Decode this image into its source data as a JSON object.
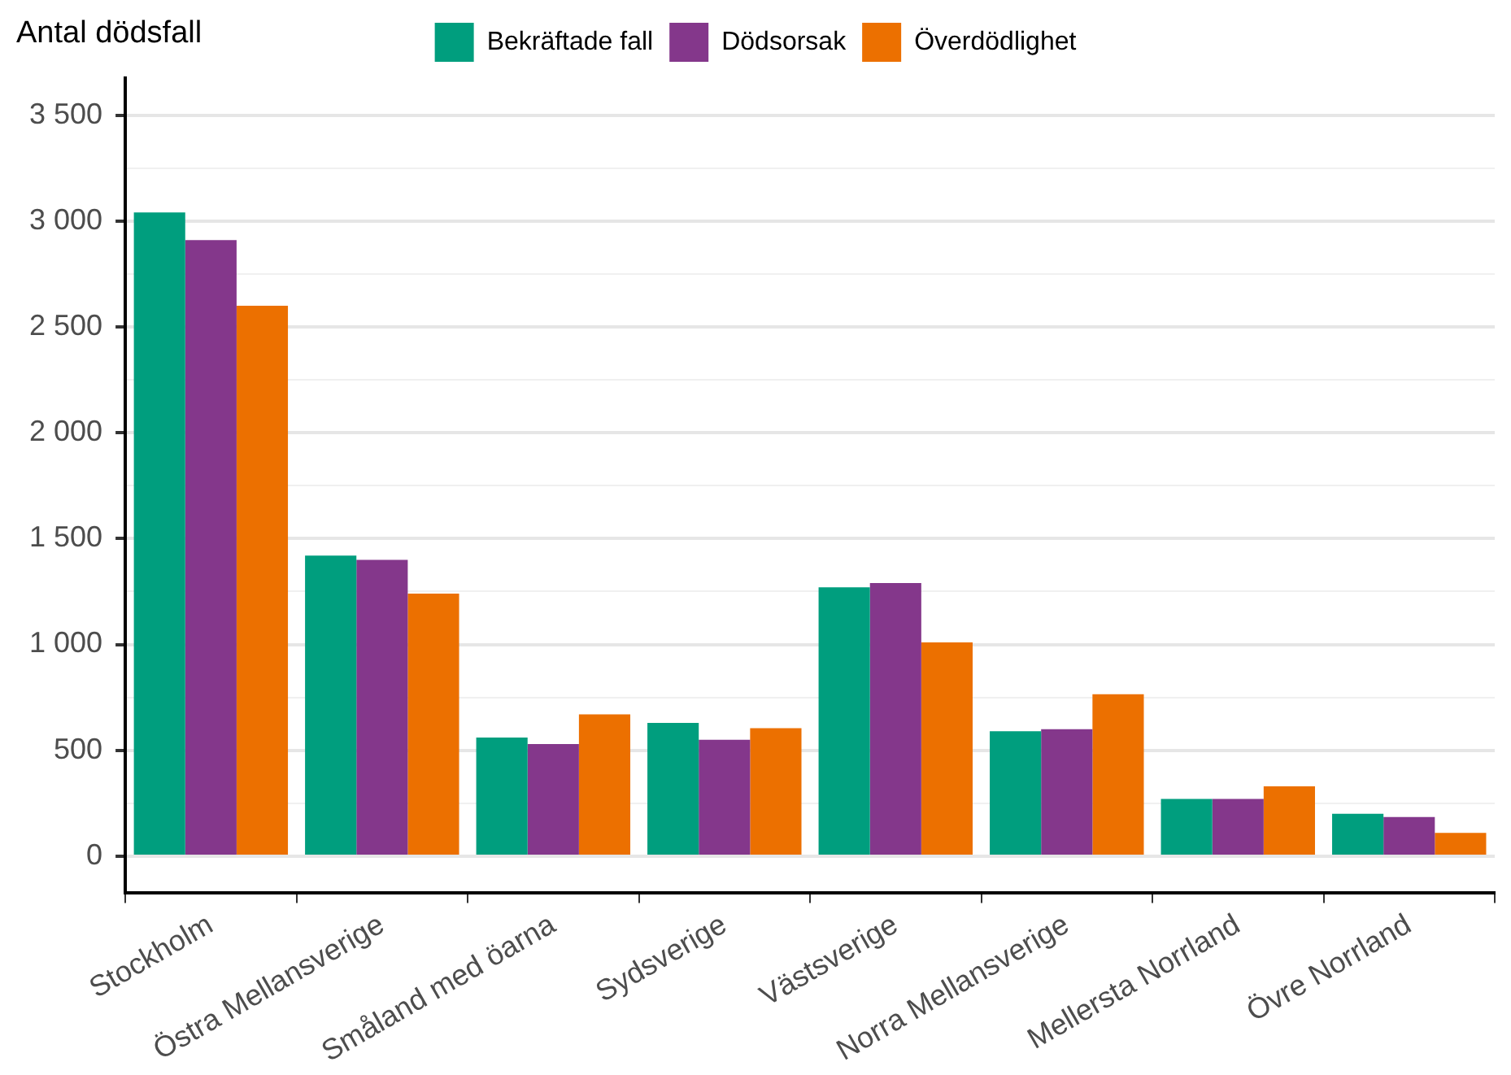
{
  "chart_data": {
    "type": "bar",
    "title": "Antal dödsfall",
    "categories": [
      "Stockholm",
      "Östra Mellansverige",
      "Småland med öarna",
      "Sydsverige",
      "Västsverige",
      "Norra Mellansverige",
      "Mellersta Norrland",
      "Övre Norrland"
    ],
    "series": [
      {
        "name": "Bekräftade fall",
        "color": "#009e7e",
        "values": [
          3040,
          1420,
          560,
          630,
          1270,
          590,
          270,
          200
        ]
      },
      {
        "name": "Dödsorsak",
        "color": "#84378b",
        "values": [
          2910,
          1400,
          530,
          550,
          1290,
          600,
          270,
          185
        ]
      },
      {
        "name": "Överdödlighet",
        "color": "#ec7000",
        "values": [
          2600,
          1240,
          670,
          605,
          1010,
          765,
          330,
          110
        ]
      }
    ],
    "ylim": [
      -175,
      3675
    ],
    "yticks": [
      0,
      {
        "value": 250,
        "label": null
      },
      {
        "value": 500,
        "label": "500"
      },
      {
        "value": 750,
        "label": null
      },
      {
        "value": 1000,
        "label": "1 000"
      },
      {
        "value": 1250,
        "label": null
      },
      {
        "value": 1500,
        "label": "1 500"
      },
      {
        "value": 1750,
        "label": null
      },
      {
        "value": 2000,
        "label": "2 000"
      },
      {
        "value": 2250,
        "label": null
      },
      {
        "value": 2500,
        "label": "2 500"
      },
      {
        "value": 2750,
        "label": null
      },
      {
        "value": 3000,
        "label": "3 000"
      },
      {
        "value": 3250,
        "label": null
      },
      {
        "value": 3500,
        "label": "3 500"
      }
    ],
    "grid": "y",
    "legend": "top"
  }
}
